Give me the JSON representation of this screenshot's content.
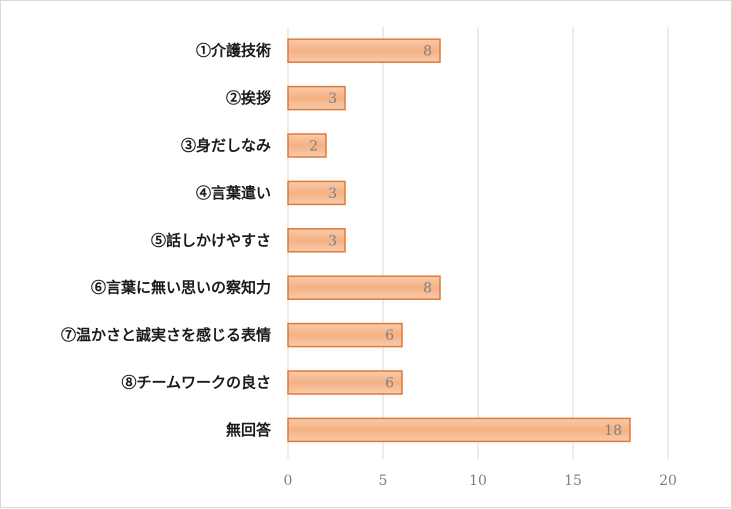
{
  "chart_data": {
    "type": "bar",
    "orientation": "horizontal",
    "categories": [
      "①介護技術",
      "②挨拶",
      "③身だしなみ",
      "④言葉遣い",
      "⑤話しかけやすさ",
      "⑥言葉に無い思いの察知力",
      "⑦温かさと誠実さを感じる表情",
      "⑧チームワークの良さ",
      "無回答"
    ],
    "values": [
      8,
      3,
      2,
      3,
      3,
      8,
      6,
      6,
      18
    ],
    "xlim": [
      0,
      20
    ],
    "xticks": [
      0,
      5,
      10,
      15,
      20
    ],
    "grid": "vertical",
    "bar_fill_top": "#f8cbad",
    "bar_fill_mid": "#f4b183",
    "bar_stroke": "#e07a38",
    "data_labels": true
  }
}
